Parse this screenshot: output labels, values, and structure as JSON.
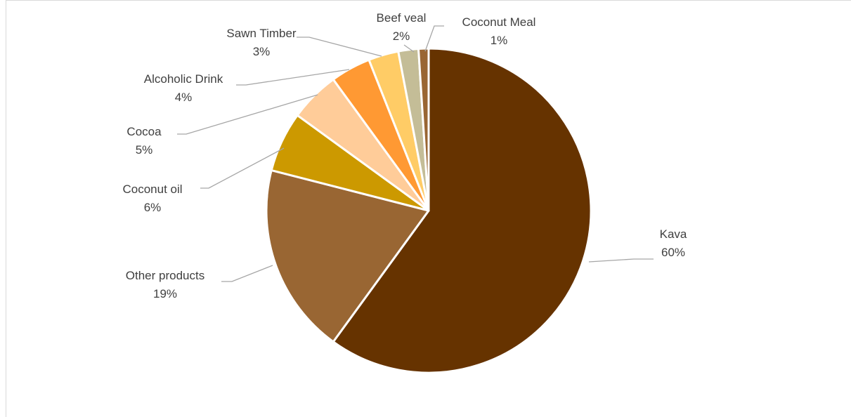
{
  "chart_data": {
    "type": "pie",
    "title": "",
    "slices": [
      {
        "name": "Kava",
        "value": 60,
        "percent_label": "60%",
        "color": "#663300"
      },
      {
        "name": "Other products",
        "value": 19,
        "percent_label": "19%",
        "color": "#996633"
      },
      {
        "name": "Coconut oil",
        "value": 6,
        "percent_label": "6%",
        "color": "#cc9900"
      },
      {
        "name": "Cocoa",
        "value": 5,
        "percent_label": "5%",
        "color": "#ffcc99"
      },
      {
        "name": "Alcoholic Drink",
        "value": 4,
        "percent_label": "4%",
        "color": "#ff9933"
      },
      {
        "name": "Sawn Timber",
        "value": 3,
        "percent_label": "3%",
        "color": "#ffcc66"
      },
      {
        "name": "Beef veal",
        "value": 2,
        "percent_label": "2%",
        "color": "#c4bd97"
      },
      {
        "name": "Coconut Meal",
        "value": 1,
        "percent_label": "1%",
        "color": "#996633"
      }
    ]
  }
}
